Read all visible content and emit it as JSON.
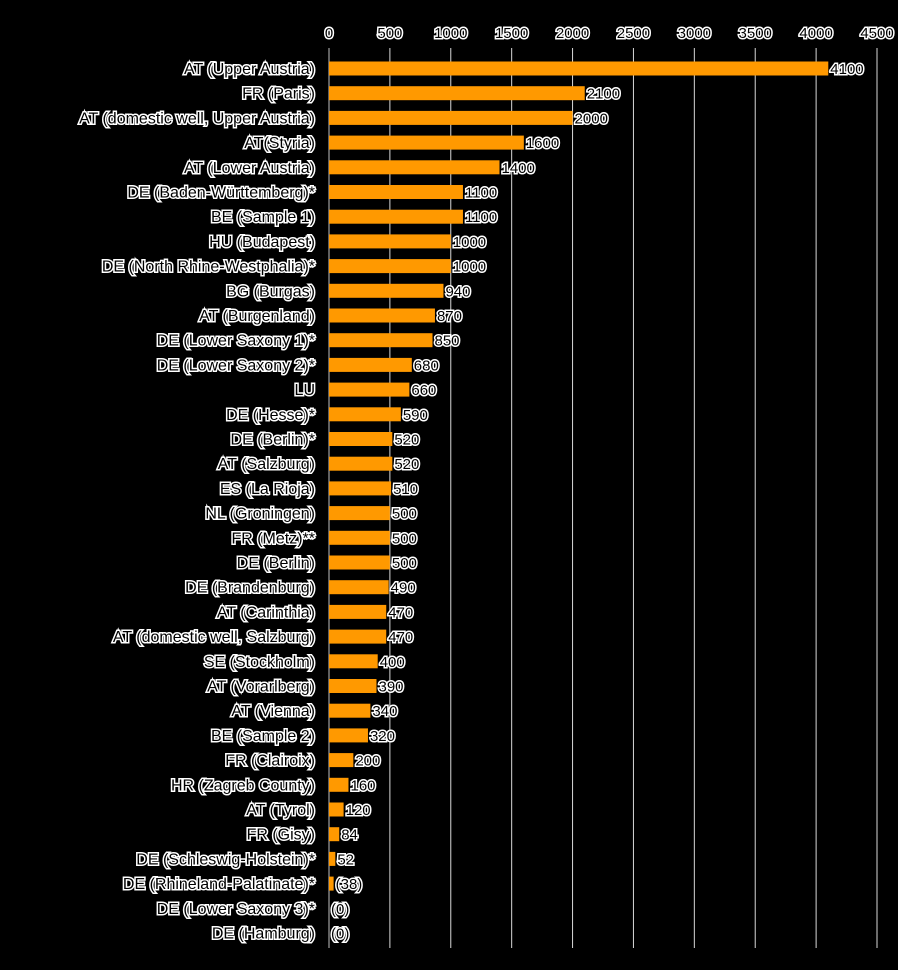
{
  "colors": {
    "background": "#000000",
    "bar": "#ff9900",
    "grid": "#d9d9d9",
    "text": "#000000",
    "text_halo": "#ffffff"
  },
  "chart_data": {
    "type": "bar",
    "orientation": "horizontal",
    "title": "",
    "xlabel": "",
    "ylabel": "",
    "xlim": [
      0,
      4500
    ],
    "x_ticks": [
      0,
      500,
      1000,
      1500,
      2000,
      2500,
      3000,
      3500,
      4000,
      4500
    ],
    "grid": true,
    "legend": "none",
    "categories": [
      "AT (Upper Austria)",
      "FR (Paris)",
      "AT (domestic well, Upper Austria)",
      "AT(Styria)",
      "AT (Lower Austria)",
      "DE (Baden-Württemberg)*",
      "BE (Sample 1)",
      "HU (Budapest)",
      "DE (North Rhine-Westphalia)*",
      "BG (Burgas)",
      "AT (Burgenland)",
      "DE (Lower Saxony 1)*",
      "DE (Lower Saxony 2)*",
      "LU",
      "DE (Hesse)*",
      "DE (Berlin)*",
      "AT (Salzburg)",
      "ES (La Rioja)",
      "NL (Groningen)",
      "FR (Metz)**",
      "DE (Berlin)",
      "DE (Brandenburg)",
      "AT (Carinthia)",
      "AT (domestic well, Salzburg)",
      "SE (Stockholm)",
      "AT (Vorarlberg)",
      "AT (Vienna)",
      "BE (Sample 2)",
      "FR (Clairoix)",
      "HR (Zagreb County)",
      "AT (Tyrol)",
      "FR (Gisy)",
      "DE (Schleswig-Holstein)*",
      "DE (Rhineland-Palatinate)*",
      "DE (Lower Saxony 3)*",
      "DE (Hamburg)"
    ],
    "values": [
      4100,
      2100,
      2000,
      1600,
      1400,
      1100,
      1100,
      1000,
      1000,
      940,
      870,
      850,
      680,
      660,
      590,
      520,
      520,
      510,
      500,
      500,
      500,
      490,
      470,
      470,
      400,
      390,
      340,
      320,
      200,
      160,
      120,
      84,
      52,
      38,
      0,
      0
    ],
    "value_labels": [
      "4100",
      "2100",
      "2000",
      "1600",
      "1400",
      "1100",
      "1100",
      "1000",
      "1000",
      "940",
      "870",
      "850",
      "680",
      "660",
      "590",
      "520",
      "520",
      "510",
      "500",
      "500",
      "500",
      "490",
      "470",
      "470",
      "400",
      "390",
      "340",
      "320",
      "200",
      "160",
      "120",
      "84",
      "52",
      "(38)",
      "(0)",
      "(0)"
    ]
  }
}
